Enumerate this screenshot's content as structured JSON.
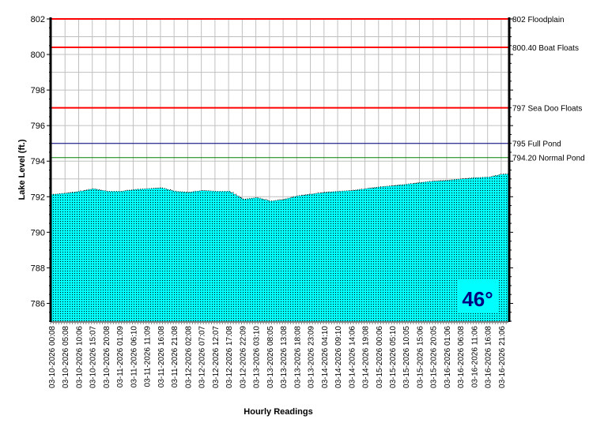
{
  "chart_data": {
    "type": "area",
    "title": "",
    "xlabel": "Hourly Readings",
    "ylabel": "Lake Level (ft.)",
    "ylim": [
      785,
      802
    ],
    "yticks": [
      786,
      788,
      790,
      792,
      794,
      796,
      798,
      800,
      802
    ],
    "grid": true,
    "x": [
      "03-10-2026 00:08",
      "03-10-2026 05:08",
      "03-10-2026 10:06",
      "03-10-2026 15:07",
      "03-10-2026 20:08",
      "03-11-2026 01:09",
      "03-11-2026 06:10",
      "03-11-2026 11:09",
      "03-11-2026 16:08",
      "03-11-2026 21:08",
      "03-12-2026 02:08",
      "03-12-2026 07:07",
      "03-12-2026 12:07",
      "03-12-2026 17:08",
      "03-12-2026 22:09",
      "03-13-2026 03:10",
      "03-13-2026 08:05",
      "03-13-2026 13:08",
      "03-13-2026 18:08",
      "03-13-2026 23:09",
      "03-14-2026 04:10",
      "03-14-2026 09:10",
      "03-14-2026 14:06",
      "03-14-2026 19:08",
      "03-15-2026 00:06",
      "03-15-2026 05:10",
      "03-15-2026 10:05",
      "03-15-2026 15:06",
      "03-15-2026 20:05",
      "03-16-2026 01:06",
      "03-16-2026 06:08",
      "03-16-2026 11:06",
      "03-16-2026 16:08",
      "03-16-2026 21:06"
    ],
    "values": [
      792.13,
      792.2,
      792.3,
      792.45,
      792.3,
      792.3,
      792.4,
      792.45,
      792.5,
      792.3,
      792.25,
      792.35,
      792.3,
      792.3,
      791.85,
      791.95,
      791.75,
      791.85,
      792.05,
      792.15,
      792.25,
      792.3,
      792.35,
      792.45,
      792.55,
      792.62,
      792.7,
      792.8,
      792.88,
      792.92,
      793.0,
      793.07,
      793.1,
      793.27
    ],
    "fill_color": "#00FFFF",
    "reference_lines": [
      {
        "value": 802,
        "label": "802 Floodplain",
        "color": "#FF0000"
      },
      {
        "value": 800.4,
        "label": "800.40 Boat Floats",
        "color": "#FF0000"
      },
      {
        "value": 797,
        "label": "797 Sea Doo Floats",
        "color": "#FF0000"
      },
      {
        "value": 795,
        "label": "795 Full Pond",
        "color": "#000080"
      },
      {
        "value": 794.2,
        "label": "794.20 Normal Pond",
        "color": "#008000"
      }
    ],
    "annotation": {
      "text": "46°",
      "color": "#000080",
      "background": "#00FFFF"
    }
  }
}
